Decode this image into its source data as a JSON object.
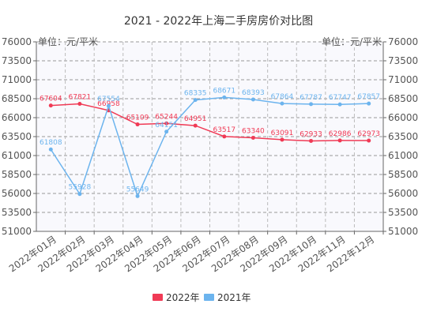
{
  "chart_data": {
    "type": "line",
    "title": "2021 - 2022年上海二手房房价对比图",
    "ylabel_left": "单位：元/平米",
    "ylabel_right": "单位：元/平米",
    "yticks": [
      "51000",
      "53500",
      "56000",
      "58500",
      "61000",
      "63500",
      "66000",
      "68500",
      "71000",
      "73500",
      "76000"
    ],
    "ylim": [
      51000,
      76000
    ],
    "categories": [
      "2022年01月",
      "2022年02月",
      "2022年03月",
      "2022年04月",
      "2022年05月",
      "2022年06月",
      "2022年07月",
      "2022年08月",
      "2022年09月",
      "2022年10月",
      "2022年11月",
      "2022年12月"
    ],
    "series": [
      {
        "name": "2022年",
        "color": "#f03a55",
        "values": [
          67604,
          67821,
          66958,
          65109,
          65244,
          64951,
          63517,
          63340,
          63091,
          62933,
          62986,
          62973
        ],
        "labels": [
          "67604",
          "67821",
          "66958",
          "65109",
          "65244",
          "64951",
          "63517",
          "63340",
          "63091",
          "62933",
          "62986",
          "62973"
        ]
      },
      {
        "name": "2021年",
        "color": "#6cb4ee",
        "values": [
          61808,
          55928,
          67554,
          55649,
          64151,
          68335,
          68671,
          68393,
          67864,
          67787,
          67747,
          67857
        ],
        "labels": [
          "61808",
          "55928",
          "67554",
          "55649",
          "64151",
          "68335",
          "68671",
          "68393",
          "67864",
          "67787",
          "67747",
          "67857"
        ]
      }
    ],
    "grid": true,
    "legend_position": "bottom"
  }
}
